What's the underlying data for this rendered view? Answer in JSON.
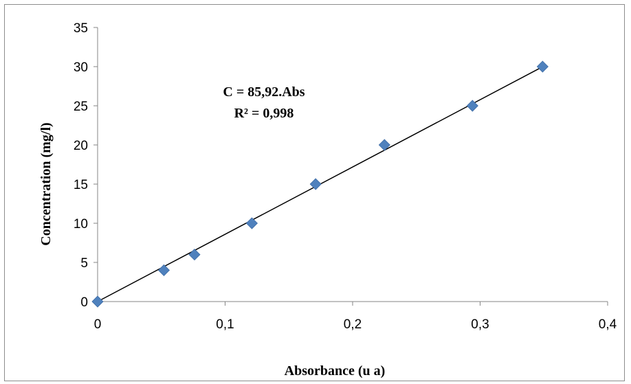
{
  "chart_data": {
    "type": "scatter",
    "xlabel": "Absorbance (u a)",
    "ylabel": "Concentration (mg/l)",
    "xlim": [
      0,
      0.4
    ],
    "ylim": [
      0,
      35
    ],
    "x_ticks": [
      "0",
      "0,1",
      "0,2",
      "0,3",
      "0,4"
    ],
    "y_ticks": [
      "0",
      "5",
      "10",
      "15",
      "20",
      "25",
      "30",
      "35"
    ],
    "grid": false,
    "legend": "none",
    "series": [
      {
        "x": [
          0,
          0.052,
          0.076,
          0.121,
          0.171,
          0.225,
          0.294,
          0.349
        ],
        "y": [
          0,
          4,
          6,
          10,
          15,
          20,
          25,
          30
        ],
        "marker": "diamond",
        "color": "#4f81bd"
      }
    ],
    "trendline": {
      "slope": 85.92,
      "intercept": 0,
      "x_range": [
        0,
        0.349
      ],
      "color": "#000000"
    },
    "annotations": {
      "equation": "C = 85,92.Abs",
      "r_squared": "R² = 0,998"
    }
  }
}
